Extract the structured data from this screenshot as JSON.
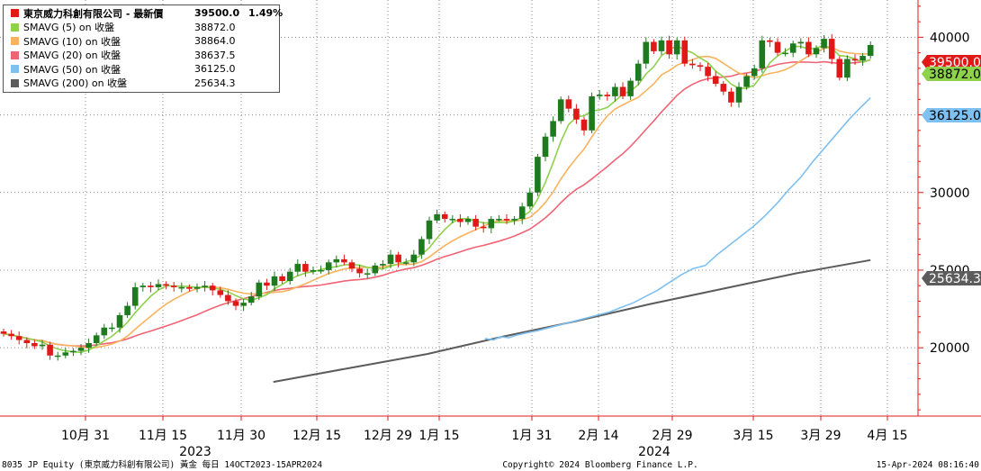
{
  "legend": {
    "title": "東京威力科創有限公司 - 最新價",
    "title_value": "39500.0",
    "title_change": "1.49%",
    "items": [
      {
        "label": "SMAVG (5)  on 收盤",
        "value": "38872.0",
        "color": "#8ed14b"
      },
      {
        "label": "SMAVG (10)  on 收盤",
        "value": "38864.0",
        "color": "#f7b35e"
      },
      {
        "label": "SMAVG (20)  on 收盤",
        "value": "38637.5",
        "color": "#f06474"
      },
      {
        "label": "SMAVG (50)  on 收盤",
        "value": "36125.0",
        "color": "#7ec0f0"
      },
      {
        "label": "SMAVG (200)  on 收盤",
        "value": "25634.3",
        "color": "#5c5c5c"
      }
    ],
    "title_color": "#e01818"
  },
  "footer": {
    "left": "8035 JP Equity (東京威力科創有限公司) 黃金  每日 14OCT2023-15APR2024",
    "center": "Copyright© 2024 Bloomberg Finance L.P.",
    "right": "15-Apr-2024 08:16:40"
  },
  "chart_data": {
    "type": "candlestick",
    "ylim": [
      15600,
      42400
    ],
    "y_ticks": [
      "20000",
      "25000",
      "30000",
      "35000",
      "40000"
    ],
    "x_ticks": [
      "10月 31",
      "11月 15",
      "11月 30",
      "12月 15",
      "12月 29",
      "1月 15",
      "1月 31",
      "2月 14",
      "2月 29",
      "3月 15",
      "3月 29",
      "4月 15"
    ],
    "x_years": [
      "2023",
      "2024"
    ],
    "last_value_labels": [
      {
        "text": "39500.0",
        "value": 39500,
        "bg": "#e01818",
        "fg": "#ffffff"
      },
      {
        "text": "38872.0",
        "value": 38872,
        "bg": "#8ed14b",
        "fg": "#000000"
      },
      {
        "text": "36125.0",
        "value": 36125,
        "bg": "#7ec0f0",
        "fg": "#000000"
      },
      {
        "text": "25634.3",
        "value": 25634.3,
        "bg": "#5c5c5c",
        "fg": "#ffffff"
      }
    ],
    "up_color": "#1f7a1f",
    "down_color": "#e01818",
    "closes": [
      20900,
      20750,
      20500,
      20300,
      20100,
      20200,
      19500,
      19500,
      19700,
      19800,
      20000,
      20300,
      20800,
      21300,
      21300,
      22100,
      22700,
      23900,
      24000,
      23900,
      24100,
      24000,
      23900,
      23900,
      23800,
      23900,
      24000,
      23700,
      23400,
      23000,
      22700,
      22900,
      23300,
      24200,
      24000,
      24600,
      24300,
      24900,
      25400,
      24900,
      25000,
      25000,
      25500,
      25700,
      25500,
      25100,
      24800,
      24800,
      25300,
      25400,
      26000,
      25500,
      25500,
      26000,
      27000,
      28200,
      28600,
      28300,
      28300,
      28100,
      28300,
      27800,
      27700,
      28300,
      28300,
      28200,
      28300,
      29100,
      30000,
      32300,
      33600,
      34600,
      36000,
      35400,
      34700,
      34000,
      36200,
      36300,
      36200,
      36800,
      36200,
      37200,
      38300,
      39700,
      39100,
      39800,
      38900,
      39800,
      38300,
      38200,
      38100,
      37500,
      37000,
      36500,
      35800,
      36800,
      37500,
      38000,
      39800,
      39700,
      39000,
      39000,
      39600,
      39700,
      38900,
      39300,
      39900,
      38600,
      37400,
      38600,
      38500,
      38800,
      39500
    ],
    "ma5_last": 38872.0,
    "ma10_last": 38864.0,
    "ma20_last": 38637.5,
    "ma50": [
      [
        20100,
        20600
      ],
      [
        20450,
        20500
      ],
      [
        20750,
        20700
      ],
      [
        21100,
        20650
      ],
      [
        21400,
        20800
      ],
      [
        21800,
        20950
      ],
      [
        22300,
        21100
      ],
      [
        22800,
        21300
      ],
      [
        23300,
        21500
      ],
      [
        23800,
        21700
      ],
      [
        24300,
        21900
      ],
      [
        24800,
        22100
      ],
      [
        25300,
        22300
      ],
      [
        25800,
        22600
      ],
      [
        26300,
        22900
      ],
      [
        26800,
        23300
      ],
      [
        27300,
        23700
      ],
      [
        27800,
        24200
      ],
      [
        28300,
        24700
      ],
      [
        28800,
        25100
      ],
      [
        29300,
        25300
      ],
      [
        29800,
        26000
      ],
      [
        30300,
        26600
      ],
      [
        30800,
        27200
      ],
      [
        31300,
        27800
      ],
      [
        31800,
        28500
      ],
      [
        32300,
        29300
      ],
      [
        32800,
        30200
      ],
      [
        33300,
        31000
      ],
      [
        33800,
        32000
      ],
      [
        34300,
        32900
      ],
      [
        34800,
        33800
      ],
      [
        35300,
        34700
      ],
      [
        35800,
        35500
      ],
      [
        36200,
        36100
      ]
    ],
    "ma200": [
      [
        20100,
        17800
      ],
      [
        25800,
        18700
      ],
      [
        31600,
        19600
      ],
      [
        37100,
        20700
      ],
      [
        42600,
        21700
      ],
      [
        48100,
        22800
      ],
      [
        53600,
        23800
      ],
      [
        59100,
        24800
      ],
      [
        64600,
        25650
      ]
    ]
  }
}
